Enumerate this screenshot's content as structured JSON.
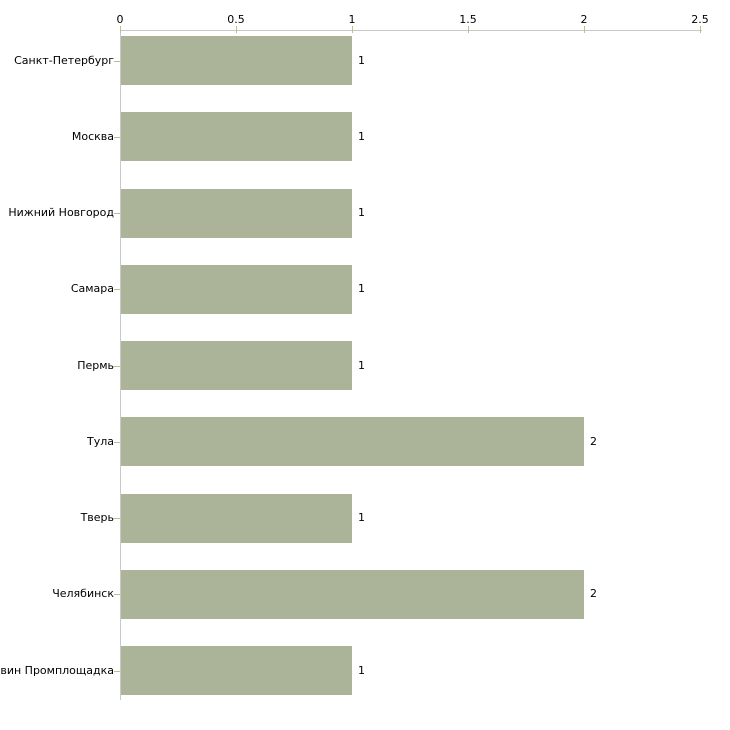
{
  "chart_data": {
    "type": "bar",
    "orientation": "horizontal",
    "title": "",
    "xlabel": "",
    "ylabel": "",
    "categories": [
      "Санкт-Петербург",
      "Москва",
      "Нижний Новгород",
      "Самара",
      "Пермь",
      "Тула",
      "Тверь",
      "Челябинск",
      "Тихвин Промплощадка"
    ],
    "values": [
      1,
      1,
      1,
      1,
      1,
      2,
      1,
      2,
      1
    ],
    "value_labels": [
      "1",
      "1",
      "1",
      "1",
      "1",
      "2",
      "1",
      "2",
      "1"
    ],
    "xlim": [
      0,
      2.5
    ],
    "x_ticks": [
      0,
      0.5,
      1,
      1.5,
      2,
      2.5
    ],
    "x_tick_labels": [
      "0",
      "0.5",
      "1",
      "1.5",
      "2",
      "2.5"
    ],
    "axis_position": "top",
    "grid": false,
    "legend": null,
    "colors": {
      "bar": "#abb398",
      "axis_line": "#c9c9c9",
      "tick_mark": "#bdbd93",
      "text": "#000000",
      "background": "#ffffff"
    }
  }
}
